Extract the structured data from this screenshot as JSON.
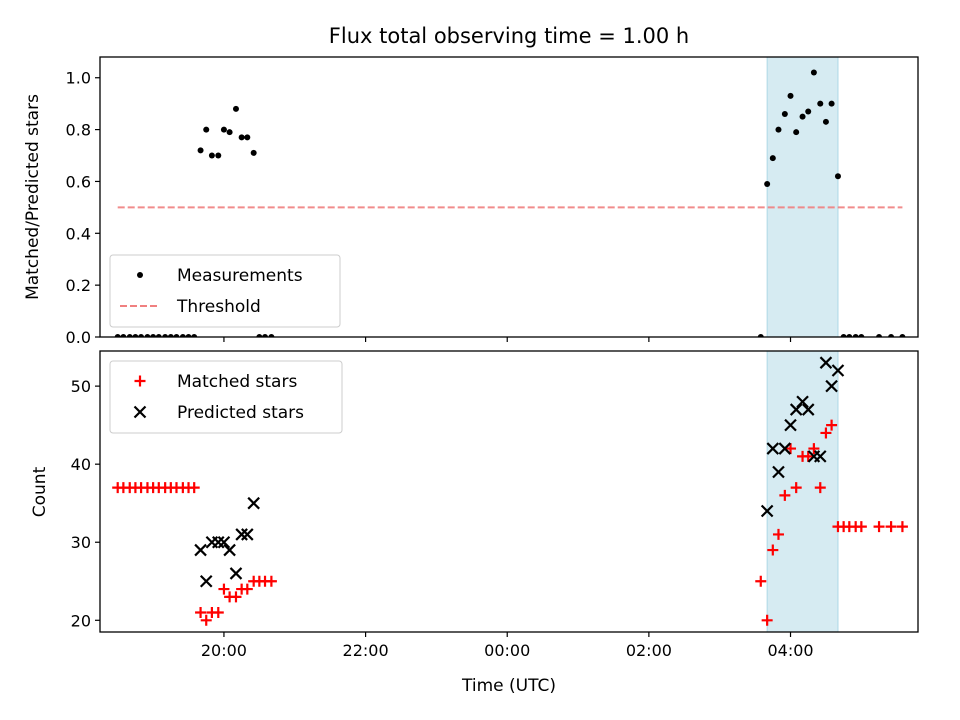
{
  "chart_data": [
    {
      "type": "scatter",
      "title": "Flux total observing time = 1.00 h",
      "xlabel": "",
      "ylabel": "Matched/Predicted stars",
      "xlim": [
        -5.75,
        5.8
      ],
      "ylim": [
        0,
        1.08
      ],
      "x_ticks": [
        -6,
        -4,
        -2,
        0,
        2,
        4,
        6
      ],
      "x_tick_labels": [
        "",
        "",
        "",
        "",
        "",
        "",
        ""
      ],
      "y_ticks": [
        0.0,
        0.2,
        0.4,
        0.6,
        0.8,
        1.0
      ],
      "y_tick_labels": [
        "0.0",
        "0.2",
        "0.4",
        "0.6",
        "0.8",
        "1.0"
      ],
      "shaded_region": {
        "x": [
          3.67,
          4.67
        ],
        "color": "#add8e6"
      },
      "legend_position": "lower-left",
      "series": [
        {
          "name": "Measurements",
          "marker": "dot",
          "color": "#000000",
          "points": [
            [
              -5.5,
              0
            ],
            [
              -5.42,
              0
            ],
            [
              -5.33,
              0
            ],
            [
              -5.25,
              0
            ],
            [
              -5.17,
              0
            ],
            [
              -5.08,
              0
            ],
            [
              -5.0,
              0
            ],
            [
              -4.92,
              0
            ],
            [
              -4.83,
              0
            ],
            [
              -4.75,
              0
            ],
            [
              -4.67,
              0
            ],
            [
              -4.58,
              0
            ],
            [
              -4.5,
              0
            ],
            [
              -4.42,
              0
            ],
            [
              -4.33,
              0.72
            ],
            [
              -4.25,
              0.8
            ],
            [
              -4.17,
              0.7
            ],
            [
              -4.08,
              0.7
            ],
            [
              -4.0,
              0.8
            ],
            [
              -3.92,
              0.79
            ],
            [
              -3.83,
              0.88
            ],
            [
              -3.75,
              0.77
            ],
            [
              -3.67,
              0.77
            ],
            [
              -3.58,
              0.71
            ],
            [
              -3.5,
              0
            ],
            [
              -3.42,
              0
            ],
            [
              -3.33,
              0
            ],
            [
              3.58,
              0
            ],
            [
              3.67,
              0.59
            ],
            [
              3.75,
              0.69
            ],
            [
              3.83,
              0.8
            ],
            [
              3.92,
              0.86
            ],
            [
              4.0,
              0.93
            ],
            [
              4.08,
              0.79
            ],
            [
              4.17,
              0.85
            ],
            [
              4.25,
              0.87
            ],
            [
              4.33,
              1.02
            ],
            [
              4.42,
              0.9
            ],
            [
              4.5,
              0.83
            ],
            [
              4.58,
              0.9
            ],
            [
              4.67,
              0.62
            ],
            [
              4.75,
              0
            ],
            [
              4.83,
              0
            ],
            [
              4.92,
              0
            ],
            [
              5.0,
              0
            ],
            [
              5.25,
              0
            ],
            [
              5.42,
              0
            ],
            [
              5.58,
              0
            ]
          ]
        },
        {
          "name": "Threshold",
          "type": "line",
          "style": "dashed",
          "color": "#f08080",
          "points": [
            [
              -5.5,
              0.5
            ],
            [
              5.58,
              0.5
            ]
          ]
        }
      ]
    },
    {
      "type": "scatter",
      "title": "",
      "xlabel": "Time (UTC)",
      "ylabel": "Count",
      "xlim": [
        -5.75,
        5.8
      ],
      "ylim": [
        18.5,
        54.5
      ],
      "x_ticks": [
        -6,
        -4,
        -2,
        0,
        2,
        4,
        6
      ],
      "x_tick_labels": [
        "18:00",
        "20:00",
        "22:00",
        "00:00",
        "02:00",
        "04:00",
        "06:00"
      ],
      "y_ticks": [
        20,
        30,
        40,
        50
      ],
      "y_tick_labels": [
        "20",
        "30",
        "40",
        "50"
      ],
      "shaded_region": {
        "x": [
          3.67,
          4.67
        ],
        "color": "#add8e6"
      },
      "legend_position": "upper-left",
      "series": [
        {
          "name": "Matched stars",
          "marker": "plus",
          "color": "#ff0000",
          "points": [
            [
              -5.5,
              37
            ],
            [
              -5.42,
              37
            ],
            [
              -5.33,
              37
            ],
            [
              -5.25,
              37
            ],
            [
              -5.17,
              37
            ],
            [
              -5.08,
              37
            ],
            [
              -5.0,
              37
            ],
            [
              -4.92,
              37
            ],
            [
              -4.83,
              37
            ],
            [
              -4.75,
              37
            ],
            [
              -4.67,
              37
            ],
            [
              -4.58,
              37
            ],
            [
              -4.5,
              37
            ],
            [
              -4.42,
              37
            ],
            [
              -4.33,
              21
            ],
            [
              -4.25,
              20
            ],
            [
              -4.17,
              21
            ],
            [
              -4.08,
              21
            ],
            [
              -4.0,
              24
            ],
            [
              -3.92,
              23
            ],
            [
              -3.83,
              23
            ],
            [
              -3.75,
              24
            ],
            [
              -3.67,
              24
            ],
            [
              -3.58,
              25
            ],
            [
              -3.5,
              25
            ],
            [
              -3.42,
              25
            ],
            [
              -3.33,
              25
            ],
            [
              3.58,
              25
            ],
            [
              3.67,
              20
            ],
            [
              3.75,
              29
            ],
            [
              3.83,
              31
            ],
            [
              3.92,
              36
            ],
            [
              4.0,
              42
            ],
            [
              4.08,
              37
            ],
            [
              4.17,
              41
            ],
            [
              4.25,
              41
            ],
            [
              4.33,
              42
            ],
            [
              4.42,
              37
            ],
            [
              4.5,
              44
            ],
            [
              4.58,
              45
            ],
            [
              4.67,
              32
            ],
            [
              4.75,
              32
            ],
            [
              4.83,
              32
            ],
            [
              4.92,
              32
            ],
            [
              5.0,
              32
            ],
            [
              5.25,
              32
            ],
            [
              5.42,
              32
            ],
            [
              5.58,
              32
            ]
          ]
        },
        {
          "name": "Predicted stars",
          "marker": "x",
          "color": "#000000",
          "points": [
            [
              -4.33,
              29
            ],
            [
              -4.25,
              25
            ],
            [
              -4.17,
              30
            ],
            [
              -4.08,
              30
            ],
            [
              -4.0,
              30
            ],
            [
              -3.92,
              29
            ],
            [
              -3.83,
              26
            ],
            [
              -3.75,
              31
            ],
            [
              -3.67,
              31
            ],
            [
              -3.58,
              35
            ],
            [
              3.67,
              34
            ],
            [
              3.75,
              42
            ],
            [
              3.83,
              39
            ],
            [
              3.92,
              42
            ],
            [
              4.0,
              45
            ],
            [
              4.08,
              47
            ],
            [
              4.17,
              48
            ],
            [
              4.25,
              47
            ],
            [
              4.33,
              41
            ],
            [
              4.42,
              41
            ],
            [
              4.5,
              53
            ],
            [
              4.58,
              50
            ],
            [
              4.67,
              52
            ]
          ]
        }
      ]
    }
  ]
}
